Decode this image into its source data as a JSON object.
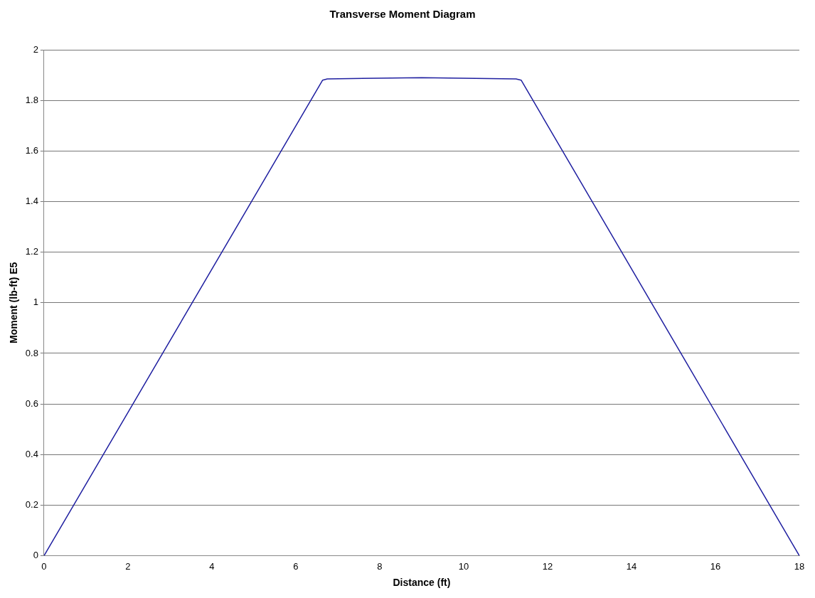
{
  "chart_data": {
    "type": "line",
    "title": "Transverse Moment Diagram",
    "xlabel": "Distance (ft)",
    "ylabel": "Moment (lb-ft) E5",
    "series": [
      {
        "color": "#1f1fa0",
        "x": [
          0,
          6.64,
          6.75,
          9,
          11.25,
          11.37,
          18
        ],
        "values": [
          0,
          1.88,
          1.885,
          1.89,
          1.885,
          1.88,
          0
        ]
      }
    ],
    "xlim": [
      0,
      18
    ],
    "xticks": [
      0,
      2,
      4,
      6,
      8,
      10,
      12,
      14,
      16,
      18
    ],
    "ylim": [
      0,
      2
    ],
    "yticks": [
      0,
      0.2,
      0.4,
      0.6,
      0.8,
      1,
      1.2,
      1.4,
      1.6,
      1.8,
      2
    ],
    "grid": "y",
    "legend": false,
    "marker": "none",
    "line_style": "solid"
  }
}
